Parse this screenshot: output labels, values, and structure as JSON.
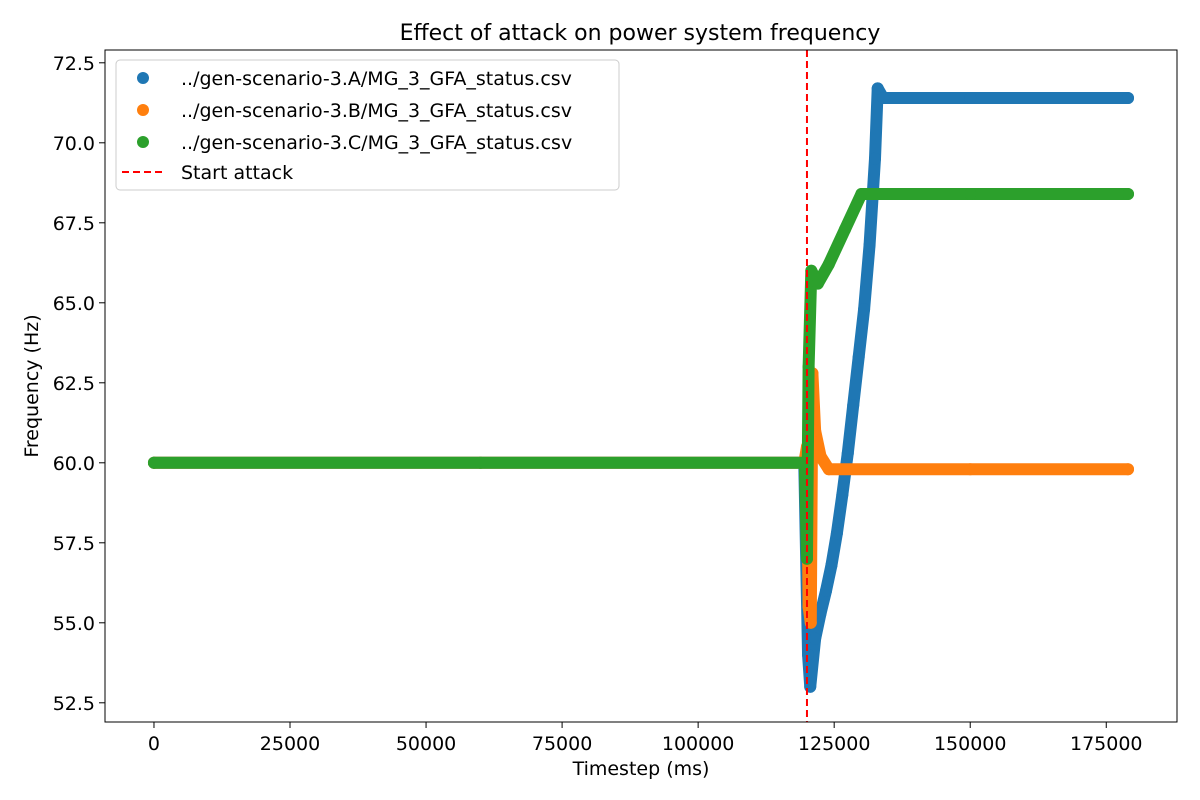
{
  "chart_data": {
    "type": "scatter",
    "title": "Effect of attack on power system frequency",
    "xlabel": "Timestep (ms)",
    "ylabel": "Frequency (Hz)",
    "xlim": [
      -9000,
      188000
    ],
    "ylim": [
      51.9,
      72.9
    ],
    "xticks": [
      0,
      25000,
      50000,
      75000,
      100000,
      125000,
      150000,
      175000
    ],
    "yticks": [
      52.5,
      55.0,
      57.5,
      60.0,
      62.5,
      65.0,
      67.5,
      70.0,
      72.5
    ],
    "grid": false,
    "legend_position": "top-left",
    "series": [
      {
        "name": "../gen-scenario-3.A/MG_3_GFA_status.csv",
        "color": "#1f77b4",
        "points": [
          [
            0,
            60.0
          ],
          [
            60000,
            60.0
          ],
          [
            119500,
            60.0
          ],
          [
            120200,
            54.0
          ],
          [
            120600,
            53.0
          ],
          [
            121500,
            54.5
          ],
          [
            122500,
            55.3
          ],
          [
            123500,
            56.0
          ],
          [
            124500,
            56.8
          ],
          [
            125500,
            57.8
          ],
          [
            126500,
            59.0
          ],
          [
            127500,
            60.3
          ],
          [
            128500,
            61.8
          ],
          [
            129500,
            63.3
          ],
          [
            130500,
            64.8
          ],
          [
            131500,
            66.8
          ],
          [
            132500,
            69.5
          ],
          [
            133000,
            71.7
          ],
          [
            134000,
            71.4
          ],
          [
            150000,
            71.4
          ],
          [
            179000,
            71.4
          ]
        ]
      },
      {
        "name": "../gen-scenario-3.B/MG_3_GFA_status.csv",
        "color": "#ff7f0e",
        "points": [
          [
            0,
            60.0
          ],
          [
            60000,
            60.0
          ],
          [
            119500,
            60.0
          ],
          [
            120000,
            60.5
          ],
          [
            120300,
            55.5
          ],
          [
            120700,
            55.0
          ],
          [
            121000,
            62.8
          ],
          [
            121500,
            61.0
          ],
          [
            122500,
            60.2
          ],
          [
            124000,
            59.8
          ],
          [
            150000,
            59.8
          ],
          [
            179000,
            59.8
          ]
        ]
      },
      {
        "name": "../gen-scenario-3.C/MG_3_GFA_status.csv",
        "color": "#2ca02c",
        "points": [
          [
            0,
            60.0
          ],
          [
            60000,
            60.0
          ],
          [
            119600,
            60.0
          ],
          [
            120000,
            57.0
          ],
          [
            120300,
            63.0
          ],
          [
            120800,
            66.0
          ],
          [
            122000,
            65.6
          ],
          [
            124000,
            66.2
          ],
          [
            127000,
            67.3
          ],
          [
            130000,
            68.4
          ],
          [
            150000,
            68.4
          ],
          [
            179000,
            68.4
          ]
        ]
      }
    ],
    "vline": {
      "x": 120000,
      "label": "Start attack",
      "color": "#ff0000",
      "style": "dashed"
    }
  }
}
